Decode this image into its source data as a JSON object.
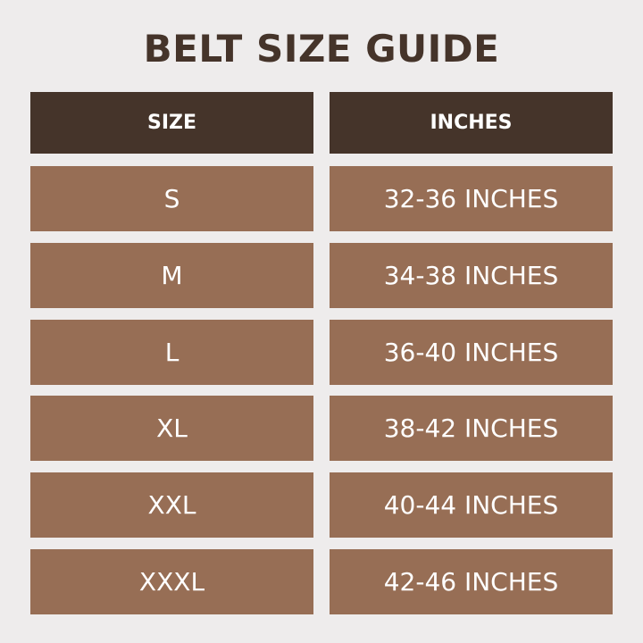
{
  "title": "BELT SIZE GUIDE",
  "colors": {
    "background": "#eeecec",
    "header": "#45342a",
    "row": "#976e55",
    "title": "#45342a"
  },
  "headers": [
    "SIZE",
    "INCHES"
  ],
  "rows": [
    {
      "size": "S",
      "inches": "32-36 INCHES"
    },
    {
      "size": "M",
      "inches": "34-38 INCHES"
    },
    {
      "size": "L",
      "inches": "36-40 INCHES"
    },
    {
      "size": "XL",
      "inches": "38-42 INCHES"
    },
    {
      "size": "XXL",
      "inches": "40-44 INCHES"
    },
    {
      "size": "XXXL",
      "inches": "42-46 INCHES"
    }
  ]
}
